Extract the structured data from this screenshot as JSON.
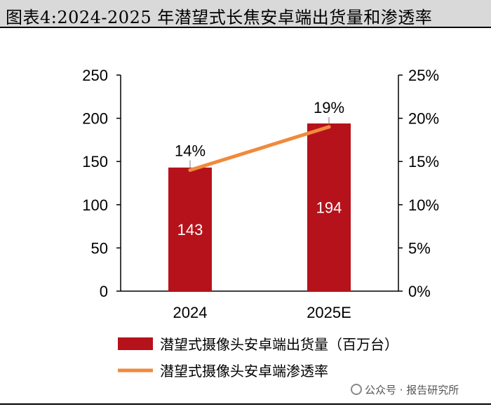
{
  "title": "图表4:2024-2025 年潜望式长焦安卓端出货量和渗透率",
  "watermark": "公众号 · 报告研究所",
  "colors": {
    "bar": "#b5121b",
    "line": "#f08a3c",
    "title_bg": "#d9d9d9"
  },
  "chart_data": {
    "type": "bar+line",
    "categories": [
      "2024",
      "2025E"
    ],
    "series": [
      {
        "name": "潜望式摄像头安卓端出货量（百万台）",
        "type": "bar",
        "axis": "left",
        "values": [
          143,
          194
        ],
        "data_labels": [
          "143",
          "194"
        ]
      },
      {
        "name": "潜望式摄像头安卓端渗透率",
        "type": "line",
        "axis": "right",
        "values": [
          14,
          19
        ],
        "data_labels": [
          "14%",
          "19%"
        ]
      }
    ],
    "left_axis": {
      "ylim": [
        0,
        250
      ],
      "ticks": [
        "0",
        "50",
        "100",
        "150",
        "200",
        "250"
      ]
    },
    "right_axis": {
      "ylim": [
        0,
        25
      ],
      "ticks": [
        "0%",
        "5%",
        "10%",
        "15%",
        "20%",
        "25%"
      ]
    },
    "legend": {
      "placement": "bottom",
      "entries": [
        "潜望式摄像头安卓端出货量（百万台）",
        "潜望式摄像头安卓端渗透率"
      ]
    }
  }
}
